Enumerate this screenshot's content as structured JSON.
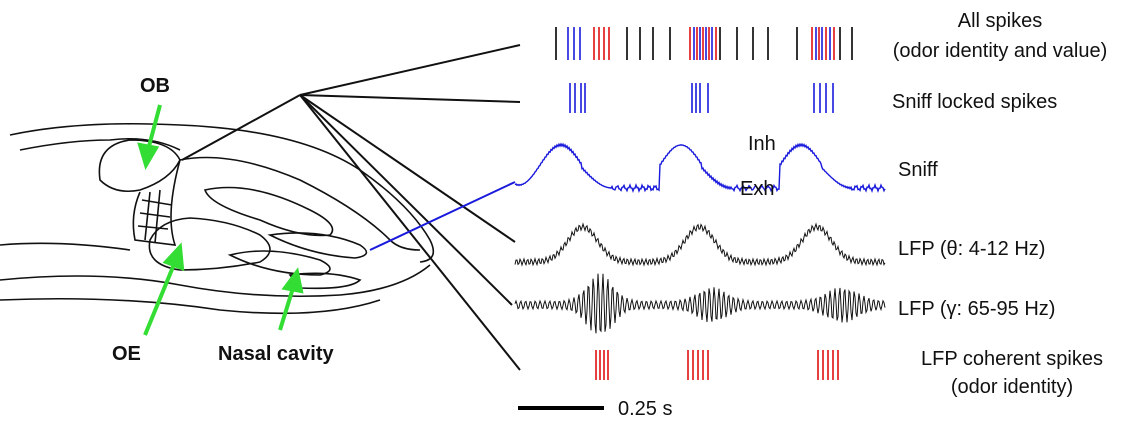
{
  "anatomy": {
    "ob": "OB",
    "oe": "OE",
    "nasal_cavity": "Nasal cavity"
  },
  "traces": {
    "all_spikes": {
      "label": "All spikes",
      "sublabel": "(odor identity and value)"
    },
    "sniff_locked": {
      "label": "Sniff locked spikes"
    },
    "sniff": {
      "label": "Sniff",
      "inhale": "Inh",
      "exhale": "Exh"
    },
    "lfp_theta": {
      "label": "LFP (θ: 4-12 Hz)"
    },
    "lfp_gamma": {
      "label": "LFP (γ: 65-95 Hz)"
    },
    "coherent": {
      "label": "LFP coherent spikes",
      "sublabel": "(odor identity)"
    }
  },
  "scale_bar": "0.25 s"
}
